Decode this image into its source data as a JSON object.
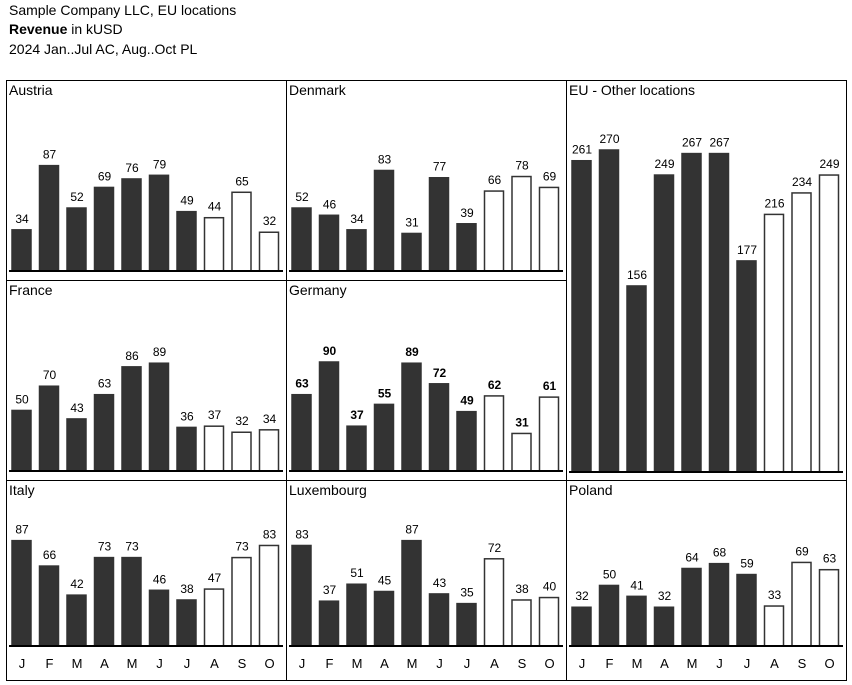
{
  "header": {
    "line1": "Sample Company LLC, EU locations",
    "line2_bold": "Revenue",
    "line2_rest": " in kUSD",
    "line3": "2024 Jan..Jul AC, Aug..Oct PL"
  },
  "colors": {
    "actual": "#333333",
    "plan_fill": "#ffffff",
    "outline": "#000000"
  },
  "chart_data": [
    {
      "type": "bar",
      "title": "Austria",
      "categories": [
        "J",
        "F",
        "M",
        "A",
        "M",
        "J",
        "J",
        "A",
        "S",
        "O"
      ],
      "values": [
        34,
        87,
        52,
        69,
        76,
        79,
        49,
        44,
        65,
        32
      ],
      "scenario": [
        "AC",
        "AC",
        "AC",
        "AC",
        "AC",
        "AC",
        "AC",
        "PL",
        "PL",
        "PL"
      ]
    },
    {
      "type": "bar",
      "title": "Denmark",
      "categories": [
        "J",
        "F",
        "M",
        "A",
        "M",
        "J",
        "J",
        "A",
        "S",
        "O"
      ],
      "values": [
        52,
        46,
        34,
        83,
        31,
        77,
        39,
        66,
        78,
        69
      ],
      "scenario": [
        "AC",
        "AC",
        "AC",
        "AC",
        "AC",
        "AC",
        "AC",
        "PL",
        "PL",
        "PL"
      ]
    },
    {
      "type": "bar",
      "title": "EU - Other locations",
      "categories": [
        "J",
        "F",
        "M",
        "A",
        "M",
        "J",
        "J",
        "A",
        "S",
        "O"
      ],
      "values": [
        261,
        270,
        156,
        249,
        267,
        267,
        177,
        216,
        234,
        249
      ],
      "scenario": [
        "AC",
        "AC",
        "AC",
        "AC",
        "AC",
        "AC",
        "AC",
        "PL",
        "PL",
        "PL"
      ]
    },
    {
      "type": "bar",
      "title": "France",
      "categories": [
        "J",
        "F",
        "M",
        "A",
        "M",
        "J",
        "J",
        "A",
        "S",
        "O"
      ],
      "values": [
        50,
        70,
        43,
        63,
        86,
        89,
        36,
        37,
        32,
        34
      ],
      "scenario": [
        "AC",
        "AC",
        "AC",
        "AC",
        "AC",
        "AC",
        "AC",
        "PL",
        "PL",
        "PL"
      ]
    },
    {
      "type": "bar",
      "title": "Germany",
      "categories": [
        "J",
        "F",
        "M",
        "A",
        "M",
        "J",
        "J",
        "A",
        "S",
        "O"
      ],
      "values": [
        63,
        90,
        37,
        55,
        89,
        72,
        49,
        62,
        31,
        61
      ],
      "scenario": [
        "AC",
        "AC",
        "AC",
        "AC",
        "AC",
        "AC",
        "AC",
        "PL",
        "PL",
        "PL"
      ],
      "bold_labels": true
    },
    {
      "type": "bar",
      "title": "Italy",
      "categories": [
        "J",
        "F",
        "M",
        "A",
        "M",
        "J",
        "J",
        "A",
        "S",
        "O"
      ],
      "values": [
        87,
        66,
        42,
        73,
        73,
        46,
        38,
        47,
        73,
        83
      ],
      "scenario": [
        "AC",
        "AC",
        "AC",
        "AC",
        "AC",
        "AC",
        "AC",
        "PL",
        "PL",
        "PL"
      ]
    },
    {
      "type": "bar",
      "title": "Luxembourg",
      "categories": [
        "J",
        "F",
        "M",
        "A",
        "M",
        "J",
        "J",
        "A",
        "S",
        "O"
      ],
      "values": [
        83,
        37,
        51,
        45,
        87,
        43,
        35,
        72,
        38,
        40
      ],
      "scenario": [
        "AC",
        "AC",
        "AC",
        "AC",
        "AC",
        "AC",
        "AC",
        "PL",
        "PL",
        "PL"
      ]
    },
    {
      "type": "bar",
      "title": "Poland",
      "categories": [
        "J",
        "F",
        "M",
        "A",
        "M",
        "J",
        "J",
        "A",
        "S",
        "O"
      ],
      "values": [
        32,
        50,
        41,
        32,
        64,
        68,
        59,
        33,
        69,
        63
      ],
      "scenario": [
        "AC",
        "AC",
        "AC",
        "AC",
        "AC",
        "AC",
        "AC",
        "PL",
        "PL",
        "PL"
      ]
    }
  ]
}
